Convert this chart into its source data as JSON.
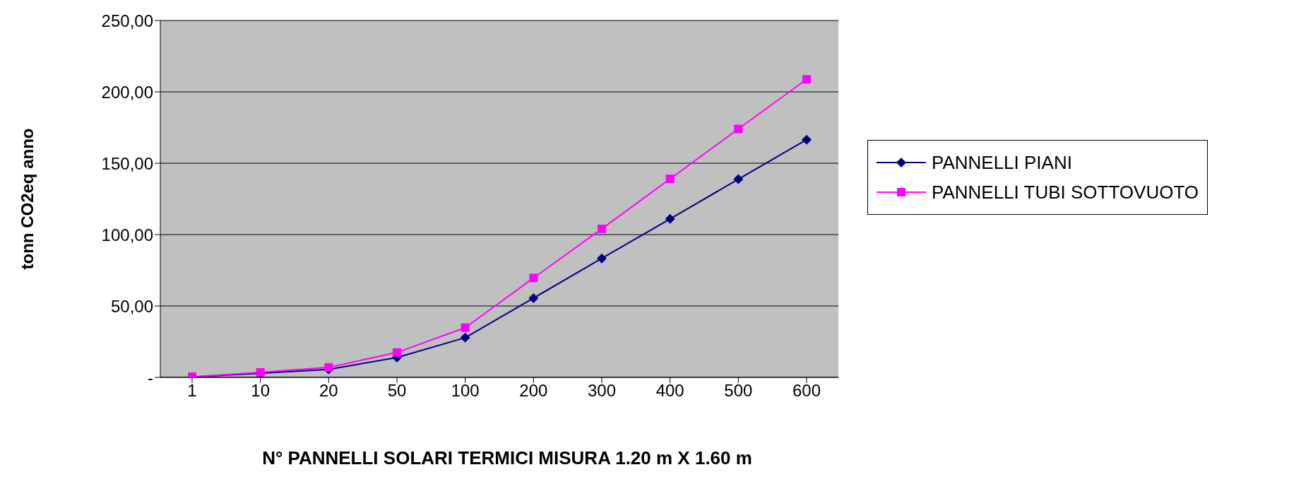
{
  "chart_data": {
    "type": "line",
    "xlabel": "N° PANNELLI SOLARI TERMICI MISURA 1.20 m X 1.60 m",
    "ylabel": "tonn CO2eq anno",
    "categories": [
      "1",
      "10",
      "20",
      "50",
      "100",
      "200",
      "300",
      "400",
      "500",
      "600"
    ],
    "series": [
      {
        "name": "PANNELLI PIANI",
        "color": "#000080",
        "marker": "diamond",
        "values": [
          0.3,
          2.8,
          5.6,
          13.9,
          27.8,
          55.5,
          83.3,
          111,
          138.8,
          166.5
        ]
      },
      {
        "name": "PANNELLI TUBI SOTTOVUOTO",
        "color": "#ff00ff",
        "marker": "square",
        "values": [
          0.4,
          3.5,
          7,
          17.4,
          34.8,
          69.6,
          104,
          139,
          174,
          208.8
        ]
      }
    ],
    "ylim": [
      0,
      250
    ],
    "yticks": [
      {
        "value": 0,
        "label": "-"
      },
      {
        "value": 50,
        "label": "50,00"
      },
      {
        "value": 100,
        "label": "100,00"
      },
      {
        "value": 150,
        "label": "150,00"
      },
      {
        "value": 200,
        "label": "200,00"
      },
      {
        "value": 250,
        "label": "250,00"
      }
    ],
    "grid": "y",
    "legend": "right",
    "line_style": "solid"
  }
}
